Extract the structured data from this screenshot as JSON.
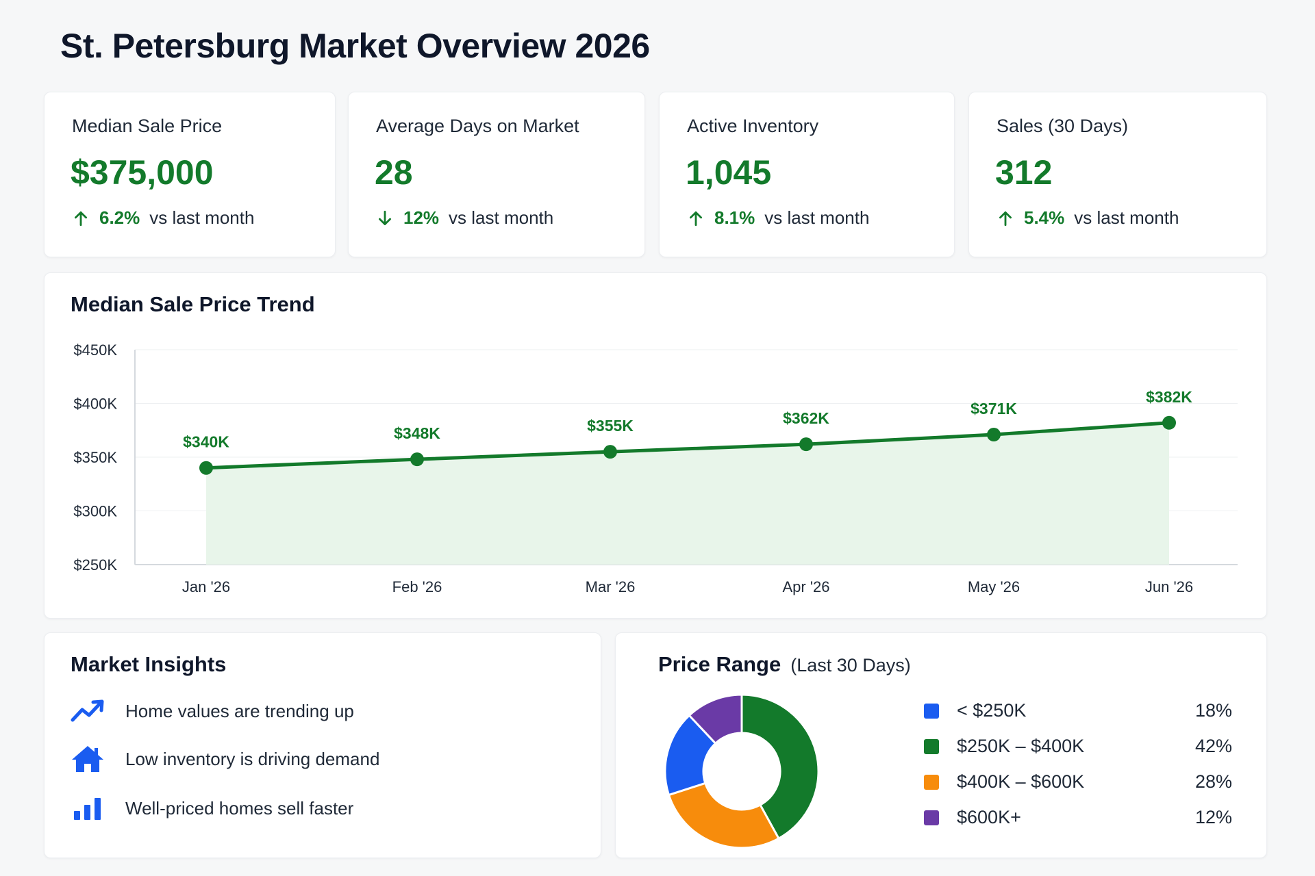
{
  "page": {
    "title": "St. Petersburg Market Overview 2026"
  },
  "kpis": [
    {
      "label": "Median Sale Price",
      "value": "$375,000",
      "direction": "up",
      "change": "6.2%",
      "suffix": "vs last month"
    },
    {
      "label": "Average Days on Market",
      "value": "28",
      "direction": "down",
      "change": "12%",
      "suffix": "vs last month"
    },
    {
      "label": "Active Inventory",
      "value": "1,045",
      "direction": "up",
      "change": "8.1%",
      "suffix": "vs last month"
    },
    {
      "label": "Sales (30 Days)",
      "value": "312",
      "direction": "up",
      "change": "5.4%",
      "suffix": "vs last month"
    }
  ],
  "trend": {
    "title": "Median Sale Price Trend",
    "chart_data": {
      "type": "area",
      "title": "Median Sale Price Trend",
      "categories": [
        "Jan '26",
        "Feb '26",
        "Mar '26",
        "Apr '26",
        "May '26",
        "Jun '26"
      ],
      "values": [
        340,
        348,
        355,
        362,
        371,
        382
      ],
      "data_labels": [
        "$340K",
        "$348K",
        "$355K",
        "$362K",
        "$371K",
        "$382K"
      ],
      "y_ticks": [
        {
          "value": 450,
          "label": "$450K"
        },
        {
          "value": 400,
          "label": "$400K"
        },
        {
          "value": 350,
          "label": "$350K"
        },
        {
          "value": 300,
          "label": "$300K"
        },
        {
          "value": 250,
          "label": "$250K"
        }
      ],
      "ylim": [
        250,
        450
      ],
      "grid": true,
      "line_color": "#137a2b",
      "fill_color": "#e8f5ea"
    }
  },
  "insights": {
    "title": "Market Insights",
    "items": [
      {
        "icon": "trending-up-icon",
        "text": "Home values are trending up"
      },
      {
        "icon": "house-icon",
        "text": "Low inventory is driving demand"
      },
      {
        "icon": "bar-chart-icon",
        "text": "Well-priced homes sell faster"
      }
    ]
  },
  "price_range": {
    "title": "Price Range",
    "subtitle": "(Last 30 Days)",
    "chart_data": {
      "type": "pie",
      "donut": true,
      "labels": [
        "< $250K",
        "$250K – $400K",
        "$400K – $600K",
        "$600K+"
      ],
      "values": [
        18,
        42,
        28,
        12
      ],
      "value_labels": [
        "18%",
        "42%",
        "28%",
        "12%"
      ],
      "colors": [
        "#1a5cf0",
        "#137a2b",
        "#f78c0c",
        "#6a3aa6"
      ]
    }
  },
  "colors": {
    "accent_green": "#137a2b",
    "icon_blue": "#1a5cf0"
  }
}
